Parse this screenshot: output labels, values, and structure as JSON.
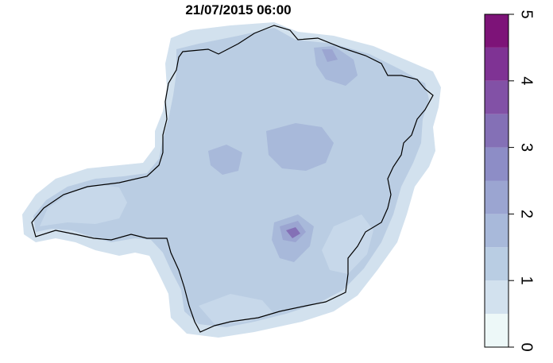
{
  "map": {
    "title": "21/07/2015 06:00"
  },
  "legend": {
    "min": 0,
    "max": 5,
    "step": 0.5,
    "tick_labels": [
      "0",
      "1",
      "2",
      "3",
      "4",
      "5"
    ],
    "tick_values": [
      0,
      1,
      2,
      3,
      4,
      5
    ],
    "colors": [
      "#edf8f8",
      "#d2e1ee",
      "#b9cde3",
      "#a8b9da",
      "#9ba5d1",
      "#8d8dc6",
      "#8470b6",
      "#8251a6",
      "#7f3394",
      "#7d1378"
    ]
  },
  "colors": {
    "outline": "#000000",
    "background": "#ffffff"
  }
}
